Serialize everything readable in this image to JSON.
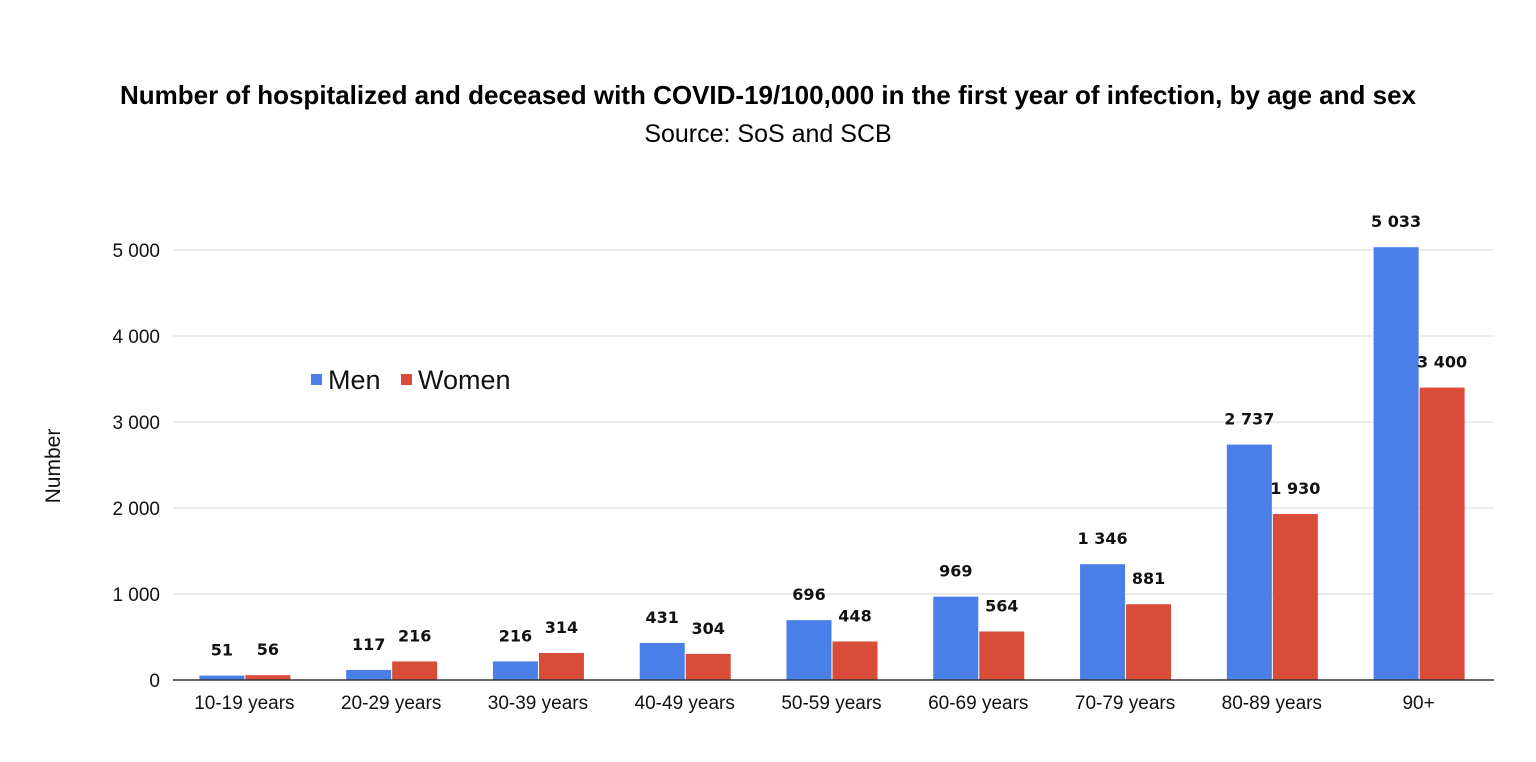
{
  "chart_data": {
    "type": "bar",
    "title": "Number of hospitalized and deceased with COVID-19/100,000 in the first year of infection, by age and sex",
    "subtitle": "Source: SoS and SCB",
    "ylabel": "Number",
    "xlabel": "",
    "ylim": [
      0,
      5500
    ],
    "yticks": [
      0,
      1000,
      2000,
      3000,
      4000,
      5000
    ],
    "ytick_labels": [
      "0",
      "1 000",
      "2 000",
      "3 000",
      "4 000",
      "5 000"
    ],
    "grid": true,
    "legend_position": "left, inside plot",
    "categories": [
      "10-19 years",
      "20-29 years",
      "30-39 years",
      "40-49 years",
      "50-59 years",
      "60-69 years",
      "70-79 years",
      "80-89 years",
      "90+"
    ],
    "series": [
      {
        "name": "Men",
        "color": "#4a7fe8",
        "values": [
          51,
          117,
          216,
          431,
          696,
          969,
          1346,
          2737,
          5033
        ],
        "labels": [
          "51",
          "117",
          "216",
          "431",
          "696",
          "969",
          "1 346",
          "2 737",
          "5 033"
        ]
      },
      {
        "name": "Women",
        "color": "#d84c38",
        "values": [
          56,
          216,
          314,
          304,
          448,
          564,
          881,
          1930,
          3400
        ],
        "labels": [
          "56",
          "216",
          "314",
          "304",
          "448",
          "564",
          "881",
          "1 930",
          "3 400"
        ]
      }
    ]
  }
}
